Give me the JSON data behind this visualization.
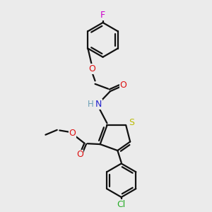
{
  "background_color": "#ebebeb",
  "atom_colors": {
    "C": "#000000",
    "H": "#6a9fb5",
    "N": "#2222cc",
    "O": "#dd1111",
    "S": "#bbbb00",
    "F": "#cc00cc",
    "Cl": "#22aa22"
  },
  "bond_color": "#111111",
  "bond_width": 1.6,
  "figsize": [
    3.0,
    3.0
  ],
  "dpi": 100,
  "xlim": [
    0,
    10
  ],
  "ylim": [
    0,
    10
  ]
}
